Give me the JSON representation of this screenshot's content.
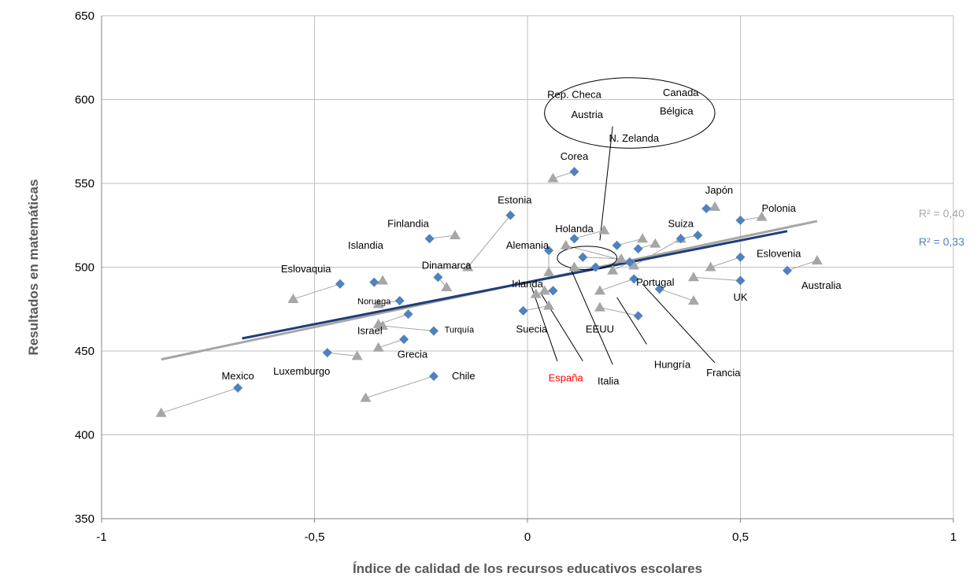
{
  "chart_data": {
    "type": "scatter",
    "xlabel": "Índice de calidad de los recursos educativos escolares",
    "ylabel": "Resultados en matemáticas",
    "xlim": [
      -1,
      1
    ],
    "ylim": [
      350,
      650
    ],
    "xticks": [
      -1,
      -0.5,
      0,
      0.5,
      1
    ],
    "xtick_labels": [
      "-1",
      "-0,5",
      "0",
      "0,5",
      "1"
    ],
    "yticks": [
      350,
      400,
      450,
      500,
      550,
      600,
      650
    ],
    "ytick_labels": [
      "350",
      "400",
      "450",
      "500",
      "550",
      "600",
      "650"
    ],
    "grid": "vertical and horizontal major gridlines",
    "series": [
      {
        "marker": "diamond",
        "color": "#4F81BD",
        "trendline": {
          "x": [
            -0.67,
            0.61
          ],
          "y": [
            457.5,
            521.5
          ],
          "color": "#1F3D7A"
        },
        "r2_label": "R² = 0,33"
      },
      {
        "marker": "triangle",
        "color": "#A6A6A6",
        "trendline": {
          "x": [
            -0.86,
            0.68
          ],
          "y": [
            445,
            527.5
          ],
          "color": "#A6A6A6"
        },
        "r2_label": "R² = 0,40"
      }
    ],
    "points": [
      {
        "name": "Mexico",
        "blue": [
          -0.68,
          428
        ],
        "grey": [
          -0.86,
          413
        ]
      },
      {
        "name": "Chile",
        "blue": [
          -0.22,
          435
        ],
        "grey": [
          -0.38,
          422
        ]
      },
      {
        "name": "Luxemburgo",
        "blue": [
          -0.47,
          449
        ],
        "grey": [
          -0.4,
          447
        ]
      },
      {
        "name": "Grecia",
        "blue": [
          -0.29,
          457
        ],
        "grey": [
          -0.35,
          452
        ]
      },
      {
        "name": "Turquía",
        "blue": [
          -0.22,
          462
        ],
        "grey": [
          -0.34,
          465
        ]
      },
      {
        "name": "Israel",
        "blue": [
          -0.28,
          472
        ],
        "grey": [
          -0.35,
          466
        ]
      },
      {
        "name": "Noruega",
        "blue": [
          -0.3,
          480
        ],
        "grey": [
          -0.35,
          478
        ]
      },
      {
        "name": "Eslovaquia",
        "blue": [
          -0.44,
          490
        ],
        "grey": [
          -0.55,
          481
        ]
      },
      {
        "name": "Islandia",
        "blue": [
          -0.36,
          491
        ],
        "grey": [
          -0.34,
          492
        ]
      },
      {
        "name": "Dinamarca",
        "blue": [
          -0.21,
          494
        ],
        "grey": [
          -0.19,
          488
        ]
      },
      {
        "name": "Finlandia",
        "blue": [
          -0.23,
          517
        ],
        "grey": [
          -0.17,
          519
        ]
      },
      {
        "name": "Estonia",
        "blue": [
          -0.04,
          531
        ],
        "grey": [
          -0.14,
          500
        ]
      },
      {
        "name": "Corea",
        "blue": [
          0.11,
          557
        ],
        "grey": [
          0.06,
          553
        ]
      },
      {
        "name": "Alemania",
        "blue": [
          0.05,
          510
        ],
        "grey": [
          0.05,
          497
        ]
      },
      {
        "name": "Holanda",
        "blue": [
          0.11,
          517
        ],
        "grey": [
          0.18,
          522
        ]
      },
      {
        "name": "Irlanda",
        "blue": [
          0.06,
          486
        ],
        "grey": [
          0.02,
          484
        ]
      },
      {
        "name": "Suecia",
        "blue": [
          -0.01,
          474
        ],
        "grey": [
          0.05,
          477
        ]
      },
      {
        "name": "España",
        "blue": [
          0.06,
          486
        ],
        "grey": [
          0.04,
          486
        ]
      },
      {
        "name": "Italia",
        "blue": [
          0.16,
          500
        ],
        "grey": [
          0.11,
          500
        ]
      },
      {
        "name": "EEUU",
        "blue": [
          0.26,
          471
        ],
        "grey": [
          0.17,
          476
        ]
      },
      {
        "name": "Portugal",
        "blue": [
          0.25,
          493
        ],
        "grey": [
          0.17,
          486
        ]
      },
      {
        "name": "Hungría",
        "blue": [
          0.31,
          487
        ],
        "grey": [
          0.39,
          480
        ]
      },
      {
        "name": "Francia",
        "blue": [
          0.24,
          503
        ],
        "grey": [
          0.2,
          498
        ]
      },
      {
        "name": "Rep. Checa",
        "blue": [
          0.13,
          506
        ],
        "grey": [
          0.22,
          505
        ]
      },
      {
        "name": "Austria",
        "blue": [
          0.21,
          513
        ],
        "grey": [
          0.27,
          517
        ]
      },
      {
        "name": "Canada",
        "blue": [
          0.26,
          511
        ],
        "grey": [
          0.3,
          514
        ]
      },
      {
        "name": "Bélgica",
        "blue": [
          0.36,
          517
        ],
        "grey": [
          0.25,
          501
        ]
      },
      {
        "name": "N. Zelanda",
        "blue": [
          0.24,
          503
        ],
        "grey": [
          0.09,
          513
        ]
      },
      {
        "name": "Suiza",
        "blue": [
          0.4,
          519
        ],
        "grey": [
          0.36,
          517
        ]
      },
      {
        "name": "Japón",
        "blue": [
          0.42,
          535
        ],
        "grey": [
          0.44,
          536
        ]
      },
      {
        "name": "Polonia",
        "blue": [
          0.5,
          528
        ],
        "grey": [
          0.55,
          530
        ]
      },
      {
        "name": "Eslovenia",
        "blue": [
          0.5,
          506
        ],
        "grey": [
          0.43,
          500
        ]
      },
      {
        "name": "UK",
        "blue": [
          0.5,
          492
        ],
        "grey": [
          0.39,
          494
        ]
      },
      {
        "name": "Australia",
        "blue": [
          0.61,
          498
        ],
        "grey": [
          0.68,
          504
        ]
      }
    ],
    "labels": [
      {
        "text": "Mexico",
        "x": -0.68,
        "y": 433,
        "color": "#000000",
        "size": 13
      },
      {
        "text": "Chile",
        "x": -0.15,
        "y": 433,
        "color": "#000000",
        "size": 13
      },
      {
        "text": "Luxemburgo",
        "x": -0.53,
        "y": 436,
        "color": "#000000",
        "size": 13
      },
      {
        "text": "Grecia",
        "x": -0.27,
        "y": 446,
        "color": "#000000",
        "size": 13
      },
      {
        "text": "Turquía",
        "x": -0.16,
        "y": 461,
        "color": "#000000",
        "size": 11
      },
      {
        "text": "Israel",
        "x": -0.37,
        "y": 460,
        "color": "#000000",
        "size": 13
      },
      {
        "text": "Noruega",
        "x": -0.36,
        "y": 478,
        "color": "#000000",
        "size": 11
      },
      {
        "text": "Eslovaquia",
        "x": -0.52,
        "y": 497,
        "color": "#000000",
        "size": 13
      },
      {
        "text": "Islandia",
        "x": -0.38,
        "y": 511,
        "color": "#000000",
        "size": 13
      },
      {
        "text": "Dinamarca",
        "x": -0.19,
        "y": 499,
        "color": "#000000",
        "size": 13
      },
      {
        "text": "Finlandia",
        "x": -0.28,
        "y": 524,
        "color": "#000000",
        "size": 13
      },
      {
        "text": "Estonia",
        "x": -0.03,
        "y": 538,
        "color": "#000000",
        "size": 13
      },
      {
        "text": "Corea",
        "x": 0.11,
        "y": 564,
        "color": "#000000",
        "size": 13
      },
      {
        "text": "Alemania",
        "x": 0.0,
        "y": 511,
        "color": "#000000",
        "size": 13
      },
      {
        "text": "Holanda",
        "x": 0.11,
        "y": 521,
        "color": "#000000",
        "size": 13
      },
      {
        "text": "Irlanda",
        "x": 0.0,
        "y": 488,
        "color": "#000000",
        "size": 13
      },
      {
        "text": "Suecia",
        "x": 0.01,
        "y": 461,
        "color": "#000000",
        "size": 13
      },
      {
        "text": "España",
        "x": 0.09,
        "y": 432,
        "color": "#FF0000",
        "size": 13
      },
      {
        "text": "Italia",
        "x": 0.19,
        "y": 430,
        "color": "#000000",
        "size": 13
      },
      {
        "text": "EEUU",
        "x": 0.17,
        "y": 461,
        "color": "#000000",
        "size": 13
      },
      {
        "text": "Portugal",
        "x": 0.3,
        "y": 489,
        "color": "#000000",
        "size": 13
      },
      {
        "text": "Hungría",
        "x": 0.34,
        "y": 440,
        "color": "#000000",
        "size": 13
      },
      {
        "text": "Francia",
        "x": 0.46,
        "y": 435,
        "color": "#000000",
        "size": 13
      },
      {
        "text": "Rep. Checa",
        "x": 0.11,
        "y": 601,
        "color": "#000000",
        "size": 13
      },
      {
        "text": "Canada",
        "x": 0.36,
        "y": 602,
        "color": "#000000",
        "size": 13
      },
      {
        "text": "Austria",
        "x": 0.14,
        "y": 589,
        "color": "#000000",
        "size": 13
      },
      {
        "text": "Bélgica",
        "x": 0.35,
        "y": 591,
        "color": "#000000",
        "size": 13
      },
      {
        "text": "N. Zelanda",
        "x": 0.25,
        "y": 575,
        "color": "#000000",
        "size": 13
      },
      {
        "text": "Suiza",
        "x": 0.36,
        "y": 524,
        "color": "#000000",
        "size": 13
      },
      {
        "text": "Japón",
        "x": 0.45,
        "y": 544,
        "color": "#000000",
        "size": 13
      },
      {
        "text": "Polonia",
        "x": 0.59,
        "y": 533,
        "color": "#000000",
        "size": 13
      },
      {
        "text": "Eslovenia",
        "x": 0.59,
        "y": 506,
        "color": "#000000",
        "size": 13
      },
      {
        "text": "UK",
        "x": 0.5,
        "y": 480,
        "color": "#000000",
        "size": 13
      },
      {
        "text": "Australia",
        "x": 0.69,
        "y": 487,
        "color": "#000000",
        "size": 13
      }
    ],
    "ellipses": [
      {
        "cx": 0.24,
        "cy": 592,
        "rx": 0.2,
        "ry": 21
      },
      {
        "cx": 0.14,
        "cy": 505.5,
        "rx": 0.07,
        "ry": 7
      }
    ],
    "connectors": [
      {
        "from": [
          0.2,
          584
        ],
        "to": [
          0.17,
          516
        ]
      },
      {
        "from": [
          0.01,
          488
        ],
        "to": [
          0.07,
          444
        ]
      },
      {
        "from": [
          0.03,
          485
        ],
        "to": [
          0.13,
          444
        ]
      },
      {
        "from": [
          0.1,
          500
        ],
        "to": [
          0.2,
          442
        ]
      },
      {
        "from": [
          0.21,
          482
        ],
        "to": [
          0.28,
          454
        ]
      },
      {
        "from": [
          0.27,
          490
        ],
        "to": [
          0.44,
          443
        ]
      }
    ]
  }
}
